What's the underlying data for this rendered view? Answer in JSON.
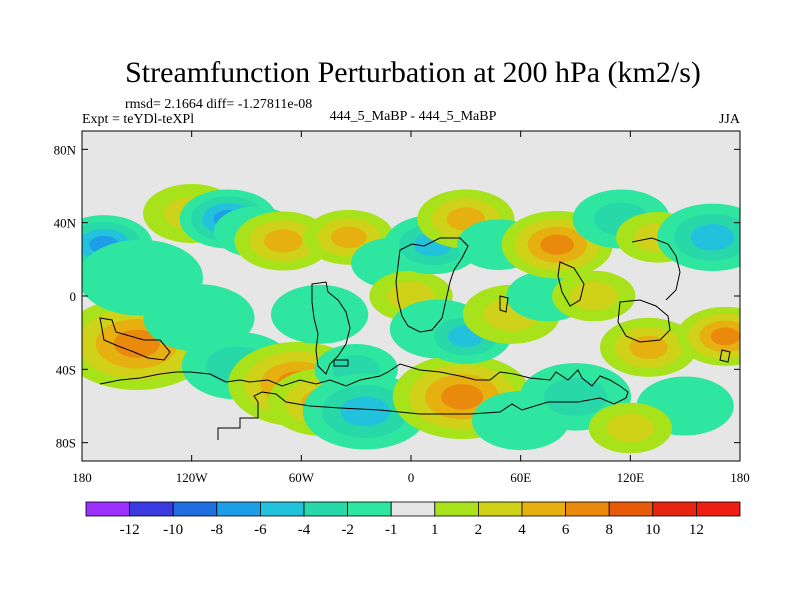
{
  "chart_data": {
    "type": "heatmap",
    "title": "Streamfunction Perturbation at 200 hPa (km2/s)",
    "stats": "rmsd= 2.1664 diff= -1.27811e-08",
    "left_label": "Expt = teYDl-teXPl",
    "center_label": "444_5_MaBP - 444_5_MaBP",
    "right_label": "JJA",
    "x_axis": {
      "range": [
        -180,
        180
      ],
      "ticks": [
        -180,
        -120,
        -60,
        0,
        60,
        120,
        180
      ],
      "tick_labels": [
        "180",
        "120W",
        "60W",
        "0",
        "60E",
        "120E",
        "180"
      ]
    },
    "y_axis": {
      "range": [
        -90,
        90
      ],
      "ticks": [
        80,
        40,
        0,
        -40,
        -80
      ],
      "tick_labels": [
        "80N",
        "40N",
        "0",
        "40S",
        "80S"
      ]
    },
    "colorbar": {
      "labels": [
        "-12",
        "-10",
        "-8",
        "-6",
        "-4",
        "-2",
        "-1",
        "1",
        "2",
        "4",
        "6",
        "8",
        "10",
        "12"
      ],
      "colors": [
        "#9b30ff",
        "#3a3ae0",
        "#1f6fe0",
        "#1e9ee6",
        "#22c2dc",
        "#28d8a8",
        "#2ee6a0",
        "#e6e6e6",
        "#a8e21a",
        "#cfd218",
        "#e6b010",
        "#ea8a0c",
        "#e65a08",
        "#e62410",
        "#ee1f12"
      ]
    },
    "cells": [
      {
        "lon": -168,
        "lat": 28,
        "r": 14,
        "v": -6
      },
      {
        "lon": -150,
        "lat": -26,
        "r": 22,
        "v": 7
      },
      {
        "lon": -148,
        "lat": 10,
        "r": 18,
        "v": -1.5
      },
      {
        "lon": -120,
        "lat": 45,
        "r": 14,
        "v": 2
      },
      {
        "lon": -116,
        "lat": -12,
        "r": 16,
        "v": -1.5
      },
      {
        "lon": -100,
        "lat": 42,
        "r": 14,
        "v": -6
      },
      {
        "lon": -95,
        "lat": -38,
        "r": 16,
        "v": -2
      },
      {
        "lon": -85,
        "lat": 35,
        "r": 12,
        "v": -1.5
      },
      {
        "lon": -70,
        "lat": 30,
        "r": 14,
        "v": 4
      },
      {
        "lon": -62,
        "lat": -48,
        "r": 20,
        "v": 7
      },
      {
        "lon": -48,
        "lat": -58,
        "r": 16,
        "v": 4
      },
      {
        "lon": -50,
        "lat": -10,
        "r": 14,
        "v": -1.5
      },
      {
        "lon": -34,
        "lat": 32,
        "r": 13,
        "v": 4
      },
      {
        "lon": -30,
        "lat": -40,
        "r": 12,
        "v": -2
      },
      {
        "lon": -25,
        "lat": -63,
        "r": 18,
        "v": -4
      },
      {
        "lon": -10,
        "lat": 18,
        "r": 12,
        "v": -1.5
      },
      {
        "lon": 0,
        "lat": 0,
        "r": 12,
        "v": 2
      },
      {
        "lon": 12,
        "lat": 28,
        "r": 14,
        "v": -4
      },
      {
        "lon": 15,
        "lat": -18,
        "r": 14,
        "v": -1.5
      },
      {
        "lon": 28,
        "lat": -55,
        "r": 20,
        "v": 6
      },
      {
        "lon": 30,
        "lat": 42,
        "r": 14,
        "v": 4
      },
      {
        "lon": 30,
        "lat": -22,
        "r": 13,
        "v": -4
      },
      {
        "lon": 48,
        "lat": 28,
        "r": 12,
        "v": -1.5
      },
      {
        "lon": 55,
        "lat": -10,
        "r": 14,
        "v": 2
      },
      {
        "lon": 60,
        "lat": -68,
        "r": 14,
        "v": -1.5
      },
      {
        "lon": 75,
        "lat": 0,
        "r": 12,
        "v": -1.5
      },
      {
        "lon": 80,
        "lat": 28,
        "r": 16,
        "v": 6
      },
      {
        "lon": 90,
        "lat": -55,
        "r": 16,
        "v": -2
      },
      {
        "lon": 100,
        "lat": 0,
        "r": 12,
        "v": 2
      },
      {
        "lon": 115,
        "lat": 42,
        "r": 14,
        "v": -2
      },
      {
        "lon": 130,
        "lat": -28,
        "r": 14,
        "v": 4
      },
      {
        "lon": 135,
        "lat": 32,
        "r": 12,
        "v": 2
      },
      {
        "lon": 150,
        "lat": -60,
        "r": 14,
        "v": -1.5
      },
      {
        "lon": 165,
        "lat": 32,
        "r": 16,
        "v": -4
      },
      {
        "lon": 172,
        "lat": -22,
        "r": 14,
        "v": 6
      },
      {
        "lon": 120,
        "lat": -72,
        "r": 12,
        "v": 2
      }
    ]
  }
}
